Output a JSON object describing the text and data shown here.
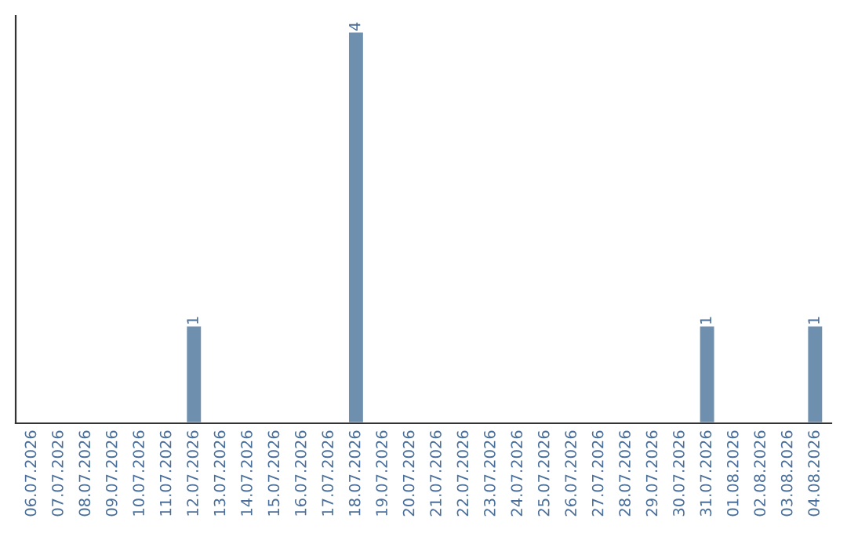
{
  "chart_data": {
    "type": "bar",
    "categories": [
      "06.07.2026",
      "07.07.2026",
      "08.07.2026",
      "09.07.2026",
      "10.07.2026",
      "11.07.2026",
      "12.07.2026",
      "13.07.2026",
      "14.07.2026",
      "15.07.2026",
      "16.07.2026",
      "17.07.2026",
      "18.07.2026",
      "19.07.2026",
      "20.07.2026",
      "21.07.2026",
      "22.07.2026",
      "23.07.2026",
      "24.07.2026",
      "25.07.2026",
      "26.07.2026",
      "27.07.2026",
      "28.07.2026",
      "29.07.2026",
      "30.07.2026",
      "31.07.2026",
      "01.08.2026",
      "02.08.2026",
      "03.08.2026",
      "04.08.2026"
    ],
    "values": [
      0,
      0,
      0,
      0,
      0,
      0,
      1,
      0,
      0,
      0,
      0,
      0,
      4,
      0,
      0,
      0,
      0,
      0,
      0,
      0,
      0,
      0,
      0,
      0,
      0,
      1,
      0,
      0,
      0,
      1
    ],
    "value_labels": [
      null,
      null,
      null,
      null,
      null,
      null,
      "1",
      null,
      null,
      null,
      null,
      null,
      "4",
      null,
      null,
      null,
      null,
      null,
      null,
      null,
      null,
      null,
      null,
      null,
      null,
      "1",
      null,
      null,
      null,
      "1"
    ],
    "color": "#6f8fae",
    "tick_labels": "x",
    "grid": false
  }
}
